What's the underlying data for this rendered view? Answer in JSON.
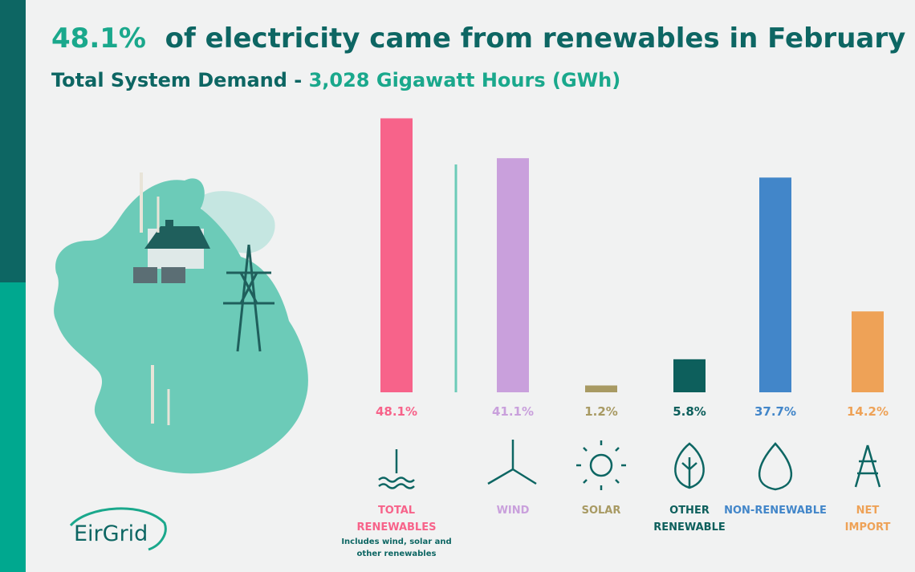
{
  "chart_data": {
    "type": "bar",
    "title": {
      "highlight": "48.1%",
      "text": "of electricity came from renewables in February"
    },
    "subtitle": {
      "text": "Total System Demand -",
      "highlight": "3,028 Gigawatt Hours (GWh)"
    },
    "categories": [
      "TOTAL RENEWABLES",
      "WIND",
      "SOLAR",
      "OTHER RENEWABLE",
      "NON-RENEWABLE",
      "NET IMPORT"
    ],
    "values": [
      48.1,
      41.1,
      1.2,
      5.8,
      37.7,
      14.2
    ],
    "value_labels": [
      "48.1%",
      "41.1%",
      "1.2%",
      "5.8%",
      "37.7%",
      "14.2%"
    ],
    "colors": [
      "#f7638a",
      "#c9a0dc",
      "#a89a63",
      "#0d5f5c",
      "#4286c9",
      "#eea257"
    ],
    "note": "Includes wind, solar and other renewables",
    "logo": "EirGrid"
  }
}
